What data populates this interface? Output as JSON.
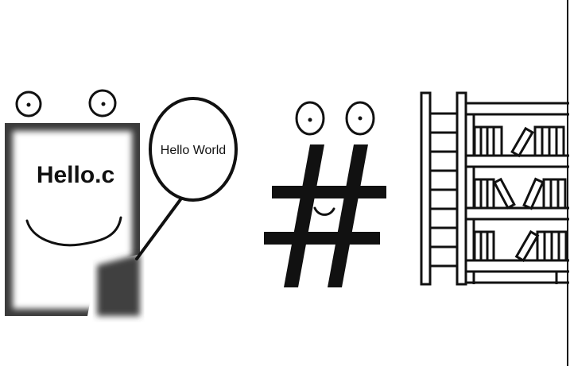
{
  "file_label": "Hello.c",
  "bubble_text": "Hello World",
  "icons": {
    "file": "c-source-file-icon",
    "bubble": "speech-bubble-icon",
    "hash": "hash-symbol-icon",
    "library": "bookshelf-icon"
  },
  "colors": {
    "ink": "#111111",
    "file_border": "#3a3a3a",
    "background": "#ffffff"
  }
}
